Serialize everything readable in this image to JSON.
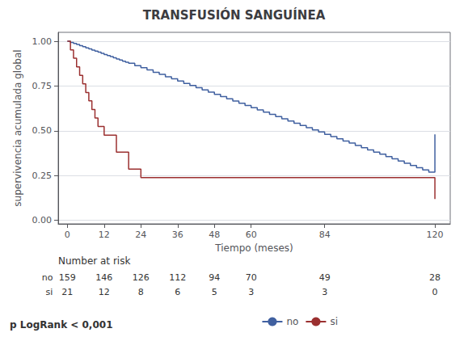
{
  "chart_data": {
    "type": "step",
    "title": "TRANSFUSIÓN SANGUÍNEA",
    "xlabel": "Tiempo (meses)",
    "ylabel": "supervivencia acumulada global",
    "xlim": [
      -3,
      125
    ],
    "ylim": [
      -0.02,
      1.05
    ],
    "xticks": [
      0,
      12,
      24,
      36,
      48,
      60,
      84,
      120
    ],
    "yticks": [
      {
        "value": 0.0,
        "label": "0.00"
      },
      {
        "value": 0.25,
        "label": "0.25"
      },
      {
        "value": 0.5,
        "label": "0.50"
      },
      {
        "value": 0.75,
        "label": "0.75"
      },
      {
        "value": 1.0,
        "label": "1.00"
      }
    ],
    "grid": "y",
    "legend": "bottom",
    "series": [
      {
        "name": "no",
        "color": "#4060a0",
        "x": [
          0,
          1,
          2,
          3,
          4,
          5,
          6,
          7,
          8,
          9,
          10,
          11,
          12,
          13,
          14,
          15,
          16,
          17,
          18,
          19,
          20,
          22,
          24,
          26,
          28,
          30,
          32,
          34,
          36,
          38,
          40,
          42,
          44,
          46,
          48,
          50,
          52,
          54,
          56,
          58,
          60,
          62,
          64,
          66,
          68,
          70,
          72,
          74,
          76,
          78,
          80,
          82,
          84,
          86,
          88,
          90,
          92,
          94,
          96,
          98,
          100,
          102,
          104,
          106,
          108,
          110,
          112,
          114,
          116,
          118,
          120
        ],
        "values": [
          1.0,
          0.994,
          0.988,
          0.982,
          0.976,
          0.97,
          0.963,
          0.957,
          0.951,
          0.945,
          0.939,
          0.933,
          0.926,
          0.92,
          0.914,
          0.908,
          0.901,
          0.895,
          0.889,
          0.883,
          0.877,
          0.864,
          0.852,
          0.84,
          0.827,
          0.815,
          0.802,
          0.79,
          0.778,
          0.765,
          0.753,
          0.741,
          0.728,
          0.716,
          0.703,
          0.691,
          0.679,
          0.666,
          0.654,
          0.641,
          0.629,
          0.617,
          0.604,
          0.592,
          0.579,
          0.567,
          0.555,
          0.542,
          0.53,
          0.517,
          0.505,
          0.493,
          0.48,
          0.468,
          0.455,
          0.443,
          0.431,
          0.418,
          0.406,
          0.393,
          0.381,
          0.369,
          0.356,
          0.344,
          0.331,
          0.319,
          0.306,
          0.294,
          0.281,
          0.269,
          0.48
        ]
      },
      {
        "name": "si",
        "color": "#9b3030",
        "x": [
          0,
          1,
          2,
          3,
          4,
          5,
          6,
          7,
          8,
          9,
          10,
          12,
          16,
          20,
          24,
          30,
          36,
          48,
          84,
          96,
          108,
          120
        ],
        "values": [
          1.0,
          0.952,
          0.905,
          0.857,
          0.81,
          0.762,
          0.714,
          0.667,
          0.619,
          0.571,
          0.524,
          0.476,
          0.381,
          0.286,
          0.238,
          0.238,
          0.238,
          0.238,
          0.238,
          0.238,
          0.238,
          0.119
        ]
      }
    ],
    "number_at_risk": {
      "label": "Number at risk",
      "times": [
        0,
        12,
        24,
        36,
        48,
        60,
        84,
        120
      ],
      "rows": [
        {
          "name": "no",
          "values": [
            159,
            146,
            126,
            112,
            94,
            70,
            49,
            28
          ]
        },
        {
          "name": "si",
          "values": [
            21,
            12,
            8,
            6,
            5,
            3,
            3,
            0
          ]
        }
      ]
    },
    "annotations": [
      "p LogRank < 0,001"
    ]
  }
}
